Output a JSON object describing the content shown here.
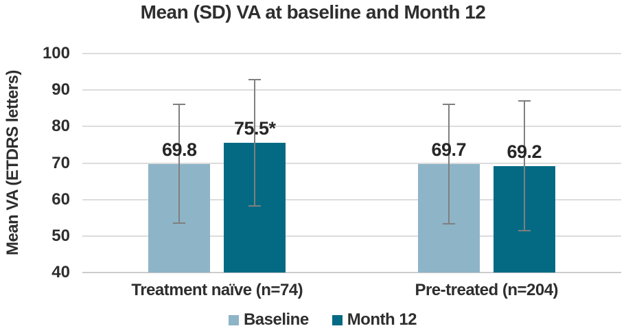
{
  "chart_data": {
    "type": "bar",
    "title": "Mean (SD) VA at baseline and Month 12",
    "ylabel": "Mean VA (ETDRS letters)",
    "xlabel": "",
    "categories": [
      "Treatment naïve (n=74)",
      "Pre-treated (n=204)"
    ],
    "series": [
      {
        "name": "Baseline",
        "color": "#8eb4c8",
        "values": [
          69.8,
          69.7
        ],
        "value_labels": [
          "69.8",
          "69.7"
        ],
        "err_low": [
          53.3,
          53.2
        ],
        "err_high": [
          86.3,
          86.2
        ]
      },
      {
        "name": "Month 12",
        "color": "#046a84",
        "values": [
          75.5,
          69.2
        ],
        "value_labels": [
          "75.5*",
          "69.2"
        ],
        "err_low": [
          58.0,
          51.2
        ],
        "err_high": [
          93.0,
          87.2
        ]
      }
    ],
    "ylim": [
      40,
      100
    ],
    "yticks": [
      40,
      50,
      60,
      70,
      80,
      90,
      100
    ],
    "grid": true,
    "legend_position": "bottom",
    "annotation_note": "*"
  },
  "colors": {
    "baseline_series": "#8eb4c8",
    "month12_series": "#046a84",
    "error_bar": "#7f7f7f",
    "gridline": "#dcdcdc",
    "text": "#2e2e2e"
  }
}
